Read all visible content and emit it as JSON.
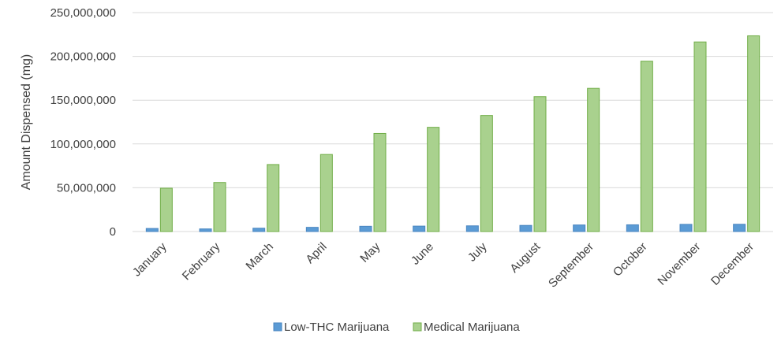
{
  "chart_data": {
    "type": "bar",
    "title": "",
    "xlabel": "",
    "ylabel": "Amount Dispensed (mg)",
    "ylim": [
      0,
      250000000
    ],
    "y_ticks": [
      "0",
      "50,000,000",
      "100,000,000",
      "150,000,000",
      "200,000,000",
      "250,000,000"
    ],
    "grid": true,
    "legend_position": "bottom",
    "categories": [
      "January",
      "February",
      "March",
      "April",
      "May",
      "June",
      "July",
      "August",
      "September",
      "October",
      "November",
      "December"
    ],
    "series": [
      {
        "name": "Low-THC Marijuana",
        "color": "#5b9bd5",
        "stroke": "#4a86c0",
        "values": [
          3500000,
          3000000,
          3800000,
          4800000,
          6000000,
          6200000,
          6500000,
          7000000,
          7500000,
          7700000,
          8200000,
          8300000
        ]
      },
      {
        "name": "Medical Marijuana",
        "color": "#a9d18e",
        "stroke": "#70ad47",
        "values": [
          49500000,
          56000000,
          76500000,
          88000000,
          112000000,
          119000000,
          132500000,
          154000000,
          163500000,
          194500000,
          216500000,
          223500000
        ]
      }
    ]
  }
}
